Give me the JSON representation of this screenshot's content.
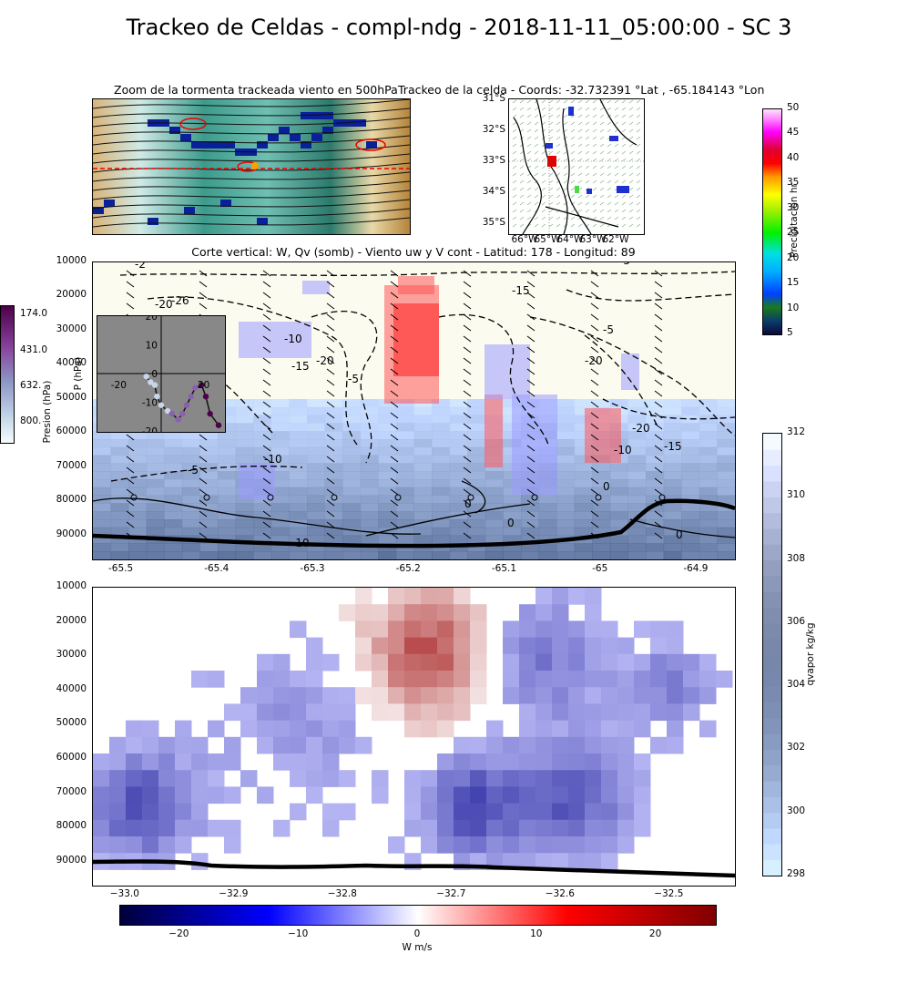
{
  "suptitle": "Trackeo de Celdas - compl-ndg - 2018-11-11_05:00:00 - SC 3",
  "zoom_panel": {
    "title": "Zoom de la tormenta trackeada viento en 500hPa"
  },
  "track_panel": {
    "title": "Trackeo de la celda - Coords: -32.732391 °Lat , -65.184143 °Lon",
    "lat_ticks": [
      "31°S",
      "32°S",
      "33°S",
      "34°S",
      "35°S"
    ],
    "lon_ticks": [
      "66°W",
      "65°W",
      "64°W",
      "63°W",
      "62°W"
    ]
  },
  "precip_colorbar": {
    "label": "Precipitacion hr",
    "ticks": [
      5,
      10,
      15,
      20,
      25,
      30,
      35,
      40,
      45,
      50
    ]
  },
  "pressure_colorbar": {
    "label": "Presion (hPa)",
    "ticks": [
      "174.0",
      "431.0",
      "632.",
      "800."
    ]
  },
  "qvapor_colorbar": {
    "label": "qvapor kg/kg",
    "ticks": [
      298,
      300,
      302,
      304,
      306,
      308,
      310,
      312
    ]
  },
  "w_colorbar": {
    "label": "W m/s",
    "ticks": [
      -20,
      -10,
      0,
      10,
      20
    ]
  },
  "chart_data": [
    {
      "type": "heatmap",
      "title": "Corte vertical: W, Qv (somb) - Viento uw y V cont - Latitud: 178 - Longitud: 89",
      "x_ticks": [
        -65.5,
        -65.4,
        -65.3,
        -65.2,
        -65.1,
        -65.0,
        -64.9
      ],
      "xlim": [
        -65.53,
        -64.86
      ],
      "y_ticks": [
        10000,
        20000,
        30000,
        40000,
        50000,
        60000,
        70000,
        80000,
        90000
      ],
      "ylim": [
        10000,
        97000
      ],
      "contour_labels": [
        "-26",
        "-20",
        "-10",
        "-15",
        "-20",
        "-5",
        "-10",
        "-5",
        "-20",
        "-15",
        "-20",
        "-10",
        "-15",
        "-5",
        "0",
        "0",
        "-10",
        "-5",
        "0",
        "0",
        "-2"
      ],
      "inset": {
        "x_ticks": [
          -20,
          0,
          20
        ],
        "y_ticks": [
          20,
          10,
          0,
          -10,
          -20
        ],
        "ylabel": "P (hPa)",
        "track_x": [
          -7,
          -5,
          -3,
          -2,
          0,
          3,
          5,
          8,
          10,
          12,
          14,
          16,
          19,
          21,
          23,
          27
        ],
        "track_y": [
          -1,
          -3,
          -4,
          -8,
          -11,
          -13,
          -14,
          -16,
          -14,
          -11,
          -8,
          -5,
          -4,
          -8,
          -14,
          -18
        ]
      }
    },
    {
      "type": "heatmap",
      "x_ticks": [
        -33.0,
        -32.9,
        -32.8,
        -32.7,
        -32.6,
        -32.5
      ],
      "xlim": [
        -33.03,
        -32.44
      ],
      "y_ticks": [
        10000,
        20000,
        30000,
        40000,
        50000,
        60000,
        70000,
        80000,
        90000
      ],
      "ylim": [
        10000,
        97000
      ]
    }
  ]
}
